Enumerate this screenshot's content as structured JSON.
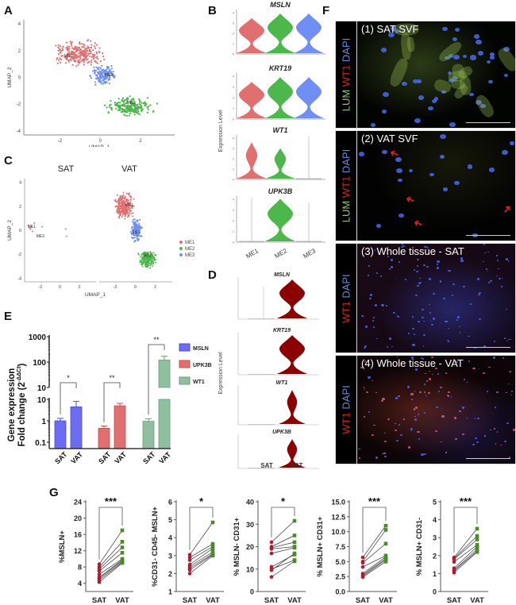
{
  "figure": {
    "panel_labels": [
      "A",
      "B",
      "C",
      "D",
      "E",
      "F",
      "G"
    ]
  },
  "colors": {
    "ME1": "#e07070",
    "ME2": "#4cb84c",
    "ME3": "#6f8ff5",
    "D_violin": "#8b0000",
    "MSLN_bar": "#6c6cf0",
    "UPK3B_bar": "#e07070",
    "WT1_bar": "#8fbf9f",
    "SAT_point": "#b01c2e",
    "VAT_point": "#4a8a2a"
  },
  "panelA": {
    "label": "A",
    "xlabel": "UMAP_1",
    "ylabel": "UMAP_2",
    "xticks": [
      "-2",
      "0",
      "2"
    ],
    "yticks": [
      "4",
      "2",
      "0",
      "-2",
      "-4"
    ],
    "cluster_labels": [
      "ME1",
      "ME3",
      "ME2"
    ]
  },
  "panelB": {
    "label": "B",
    "ylabel": "Expression Level",
    "genes": [
      "MSLN",
      "KRT19",
      "WT1",
      "UPK3B"
    ],
    "groups": [
      "ME1",
      "ME2",
      "ME3"
    ]
  },
  "panelC": {
    "label": "C",
    "facets": [
      "SAT",
      "VAT"
    ],
    "xlabel": "UMAP_1",
    "ylabel": "UMAP_2",
    "xticks": [
      "-2",
      "0",
      "2"
    ],
    "yticks": [
      "4",
      "2",
      "0",
      "-2",
      "-4"
    ],
    "legend": [
      "ME1",
      "ME2",
      "ME3"
    ],
    "sat_labels": [
      "ME1",
      "ME3"
    ],
    "vat_labels": [
      "ME1",
      "ME3",
      "ME2"
    ]
  },
  "panelD": {
    "label": "D",
    "ylabel": "Expression Level",
    "genes": [
      "MSLN",
      "KRT19",
      "WT1",
      "UPK3B"
    ],
    "groups": [
      "SAT",
      "VAT"
    ]
  },
  "panelE": {
    "label": "E",
    "ylabel_line1": "Gene expression",
    "ylabel_line2": "Fold change (2",
    "ylabel_sup": "-ΔΔCt",
    "ylabel_close": ")",
    "yticks_upper": [
      "1000",
      "100",
      "10"
    ],
    "yticks_lower": [
      "10",
      "1",
      "0.1"
    ],
    "legend": [
      "MSLN",
      "UPK3B",
      "WT1"
    ],
    "xlabels": [
      "SAT",
      "VAT",
      "SAT",
      "VAT",
      "SAT",
      "VAT"
    ],
    "significance": [
      "*",
      "**",
      "**"
    ]
  },
  "panelF": {
    "label": "F",
    "rows": [
      {
        "caption": "(1) SAT SVF",
        "stain": [
          {
            "t": "LUM",
            "c": "#8fc86a"
          },
          {
            "t": " WT1",
            "c": "#e02020"
          },
          {
            "t": " DAPI",
            "c": "#5a8fe0"
          }
        ]
      },
      {
        "caption": "(2) VAT SVF",
        "stain": [
          {
            "t": "LUM",
            "c": "#8fc86a"
          },
          {
            "t": " WT1",
            "c": "#e02020"
          },
          {
            "t": " DAPI",
            "c": "#5a8fe0"
          }
        ]
      },
      {
        "caption": "(3) Whole tissue - SAT",
        "stain": [
          {
            "t": "WT1",
            "c": "#e02020"
          },
          {
            "t": " DAPI",
            "c": "#5a8fe0"
          }
        ]
      },
      {
        "caption": "(4) Whole tissue - VAT",
        "stain": [
          {
            "t": "WT1",
            "c": "#e02020"
          },
          {
            "t": " DAPI",
            "c": "#5a8fe0"
          }
        ]
      }
    ]
  },
  "panelG": {
    "label": "G",
    "xlabels": [
      "SAT",
      "VAT"
    ]
  },
  "chart_data": [
    {
      "id": "E",
      "type": "bar",
      "title": "",
      "ylabel": "Gene expression Fold change (2^-ΔΔCt)",
      "yscale": "log (broken axis)",
      "categories": [
        "SAT",
        "VAT"
      ],
      "series": [
        {
          "name": "MSLN",
          "values": [
            1.0,
            4.5
          ],
          "errors": [
            0.3,
            3.5
          ],
          "significance": "*"
        },
        {
          "name": "UPK3B",
          "values": [
            0.45,
            5.0
          ],
          "errors": [
            0.12,
            1.5
          ],
          "significance": "**"
        },
        {
          "name": "WT1",
          "values": [
            0.95,
            120
          ],
          "errors": [
            0.3,
            50
          ],
          "significance": "**"
        }
      ],
      "legend_position": "right"
    },
    {
      "id": "G1",
      "type": "line",
      "ylabel": "%MSLN+",
      "ylim": [
        2,
        24
      ],
      "yticks": [
        4,
        8,
        12,
        16,
        20,
        24
      ],
      "categories": [
        "SAT",
        "VAT"
      ],
      "significance": "***",
      "pairs": [
        [
          8.7,
          17.0
        ],
        [
          8.0,
          14.2
        ],
        [
          7.5,
          12.8
        ],
        [
          7.0,
          11.5
        ],
        [
          6.2,
          10.0
        ],
        [
          5.5,
          9.7
        ],
        [
          5.2,
          9.5
        ],
        [
          4.8,
          9.2
        ],
        [
          4.3,
          9.0
        ]
      ]
    },
    {
      "id": "G2",
      "type": "line",
      "ylabel": "%CD31- CD45- MSLN+",
      "ylim": [
        1,
        6
      ],
      "yticks": [
        1,
        2,
        3,
        4,
        5,
        6
      ],
      "categories": [
        "SAT",
        "VAT"
      ],
      "significance": "*",
      "pairs": [
        [
          3.05,
          4.85
        ],
        [
          2.9,
          3.65
        ],
        [
          2.75,
          3.5
        ],
        [
          2.5,
          3.4
        ],
        [
          2.4,
          3.2
        ],
        [
          2.3,
          3.1
        ],
        [
          2.2,
          3.05
        ],
        [
          2.0,
          3.0
        ]
      ]
    },
    {
      "id": "G3",
      "type": "line",
      "ylabel": "% MSLN- CD31+",
      "ylim": [
        0,
        40
      ],
      "yticks": [
        0,
        10,
        20,
        30,
        40
      ],
      "categories": [
        "SAT",
        "VAT"
      ],
      "significance": "*",
      "pairs": [
        [
          22,
          31.5
        ],
        [
          20,
          25
        ],
        [
          19.5,
          22
        ],
        [
          19,
          20
        ],
        [
          17,
          19.5
        ],
        [
          11,
          16.5
        ],
        [
          10,
          14
        ],
        [
          9.5,
          17
        ],
        [
          6.5,
          13.5
        ]
      ]
    },
    {
      "id": "G4",
      "type": "line",
      "ylabel": "% MSLN+ CD31+",
      "ylim": [
        0,
        15
      ],
      "yticks": [
        0,
        2.5,
        5.0,
        7.5,
        10.0,
        12.5,
        15.0
      ],
      "categories": [
        "SAT",
        "VAT"
      ],
      "significance": "***",
      "pairs": [
        [
          5.7,
          11.0
        ],
        [
          5.0,
          10.3
        ],
        [
          4.8,
          8.0
        ],
        [
          4.1,
          6.0
        ],
        [
          3.0,
          5.8
        ],
        [
          2.8,
          5.5
        ],
        [
          2.6,
          5.3
        ],
        [
          2.4,
          5.0
        ]
      ]
    },
    {
      "id": "G5",
      "type": "line",
      "ylabel": "% MSLN+ CD31-",
      "ylim": [
        0,
        5
      ],
      "yticks": [
        0,
        1,
        2,
        3,
        4,
        5
      ],
      "categories": [
        "SAT",
        "VAT"
      ],
      "significance": "***",
      "pairs": [
        [
          1.9,
          3.5
        ],
        [
          1.85,
          3.1
        ],
        [
          1.8,
          2.9
        ],
        [
          1.65,
          2.6
        ],
        [
          1.3,
          2.5
        ],
        [
          1.2,
          2.35
        ],
        [
          1.15,
          2.25
        ],
        [
          1.05,
          2.2
        ]
      ]
    }
  ]
}
